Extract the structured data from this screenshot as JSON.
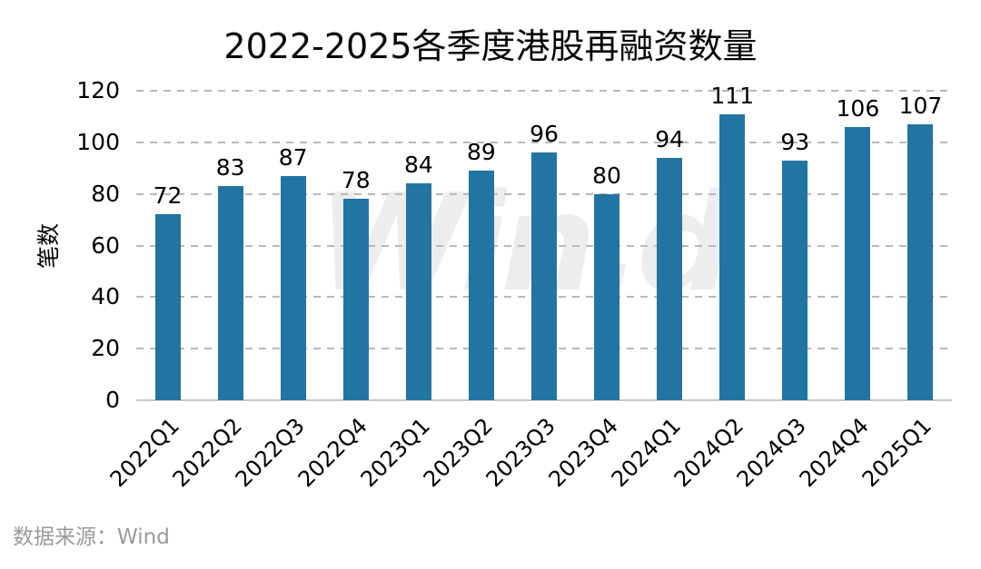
{
  "title": "2022-2025各季度港股再融资数量",
  "source_note": "数据来源：Wind",
  "watermark_text": "Win.d",
  "colors": {
    "bar": "#2274a2",
    "gridline": "#b9b9b9",
    "baseline": "#c9c9c9",
    "text": "#000000",
    "source_text": "#9a9a9a",
    "watermark": "#ededed",
    "background": "#ffffff"
  },
  "chart_data": {
    "type": "bar",
    "title": "2022-2025各季度港股再融资数量",
    "categories": [
      "2022Q1",
      "2022Q2",
      "2022Q3",
      "2022Q4",
      "2023Q1",
      "2023Q2",
      "2023Q3",
      "2023Q4",
      "2024Q1",
      "2024Q2",
      "2024Q3",
      "2024Q4",
      "2025Q1"
    ],
    "values": [
      72,
      83,
      87,
      78,
      84,
      89,
      96,
      80,
      94,
      111,
      93,
      106,
      107
    ],
    "xlabel": "",
    "ylabel": "笔数",
    "ylim": [
      0,
      120
    ],
    "ytick_step": 20,
    "yticks": [
      0,
      20,
      40,
      60,
      80,
      100,
      120
    ],
    "grid": "horizontal-dashed",
    "legend_position": "none",
    "data_labels": true,
    "x_label_rotation_deg": 45
  }
}
